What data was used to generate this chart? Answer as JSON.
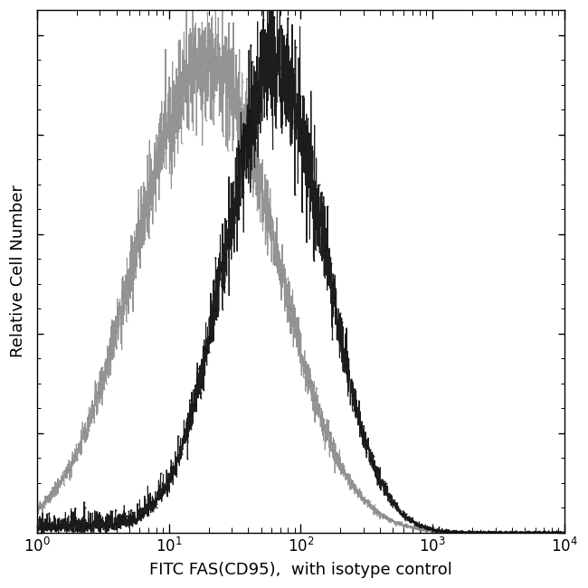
{
  "title": "",
  "xlabel": "FITC FAS(CD95),  with isotype control",
  "ylabel": "Relative Cell Number",
  "background_color": "#ffffff",
  "curve1_color": "#888888",
  "curve2_color": "#111111",
  "noise_seed": 123,
  "linewidth": 0.8,
  "figsize": [
    6.5,
    6.5
  ],
  "dpi": 100
}
